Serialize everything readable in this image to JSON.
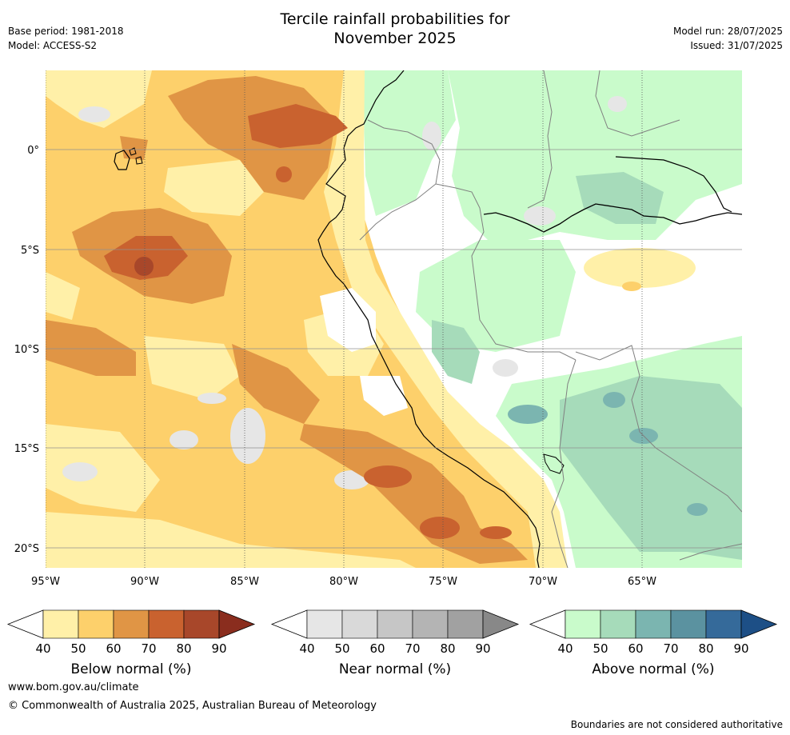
{
  "header": {
    "title_line1": "Tercile rainfall probabilities for",
    "title_line2": "November 2025",
    "base_period": "Base period: 1981-2018",
    "model": "Model: ACCESS-S2",
    "model_run": "Model run: 28/07/2025",
    "issued": "Issued: 31/07/2025"
  },
  "map": {
    "region": "Western South America and eastern Pacific",
    "lon_ticks": [
      "95°W",
      "90°W",
      "85°W",
      "80°W",
      "75°W",
      "70°W",
      "65°W"
    ],
    "lat_ticks": [
      "0°",
      "5°S",
      "10°S",
      "15°S",
      "20°S"
    ],
    "colors": {
      "below_40": "#fff0a8",
      "below_50": "#fdd06b",
      "below_60": "#e09545",
      "below_70": "#c9622f",
      "below_80": "#a8472a",
      "below_90": "#8a2d1e",
      "near_40": "#e6e6e6",
      "near_50": "#d9d9d9",
      "near_60": "#c6c6c6",
      "near_70": "#b4b4b4",
      "near_80": "#a1a1a1",
      "near_90": "#888888",
      "above_40": "#c9fbcb",
      "above_50": "#a6dbba",
      "above_60": "#7bb5b0",
      "above_70": "#5b92a0",
      "above_80": "#356a9a",
      "above_90": "#1d4f86",
      "coast": "#000000",
      "border": "#808080",
      "grid": "#909090"
    }
  },
  "colorbars": [
    {
      "label": "Below normal (%)",
      "ticks": [
        "40",
        "50",
        "60",
        "70",
        "80",
        "90"
      ],
      "colors": [
        "#fff0a8",
        "#fdd06b",
        "#e09545",
        "#c9622f",
        "#a8472a"
      ],
      "end_color": "#8a2d1e"
    },
    {
      "label": "Near normal (%)",
      "ticks": [
        "40",
        "50",
        "60",
        "70",
        "80",
        "90"
      ],
      "colors": [
        "#e6e6e6",
        "#d9d9d9",
        "#c6c6c6",
        "#b4b4b4",
        "#a1a1a1"
      ],
      "end_color": "#888888"
    },
    {
      "label": "Above normal (%)",
      "ticks": [
        "40",
        "50",
        "60",
        "70",
        "80",
        "90"
      ],
      "colors": [
        "#c9fbcb",
        "#a6dbba",
        "#7bb5b0",
        "#5b92a0",
        "#356a9a"
      ],
      "end_color": "#1d4f86"
    }
  ],
  "footer": {
    "url": "www.bom.gov.au/climate",
    "copyright": "© Commonwealth of Australia 2025, Australian Bureau of Meteorology",
    "disclaimer": "Boundaries are not considered authoritative"
  }
}
